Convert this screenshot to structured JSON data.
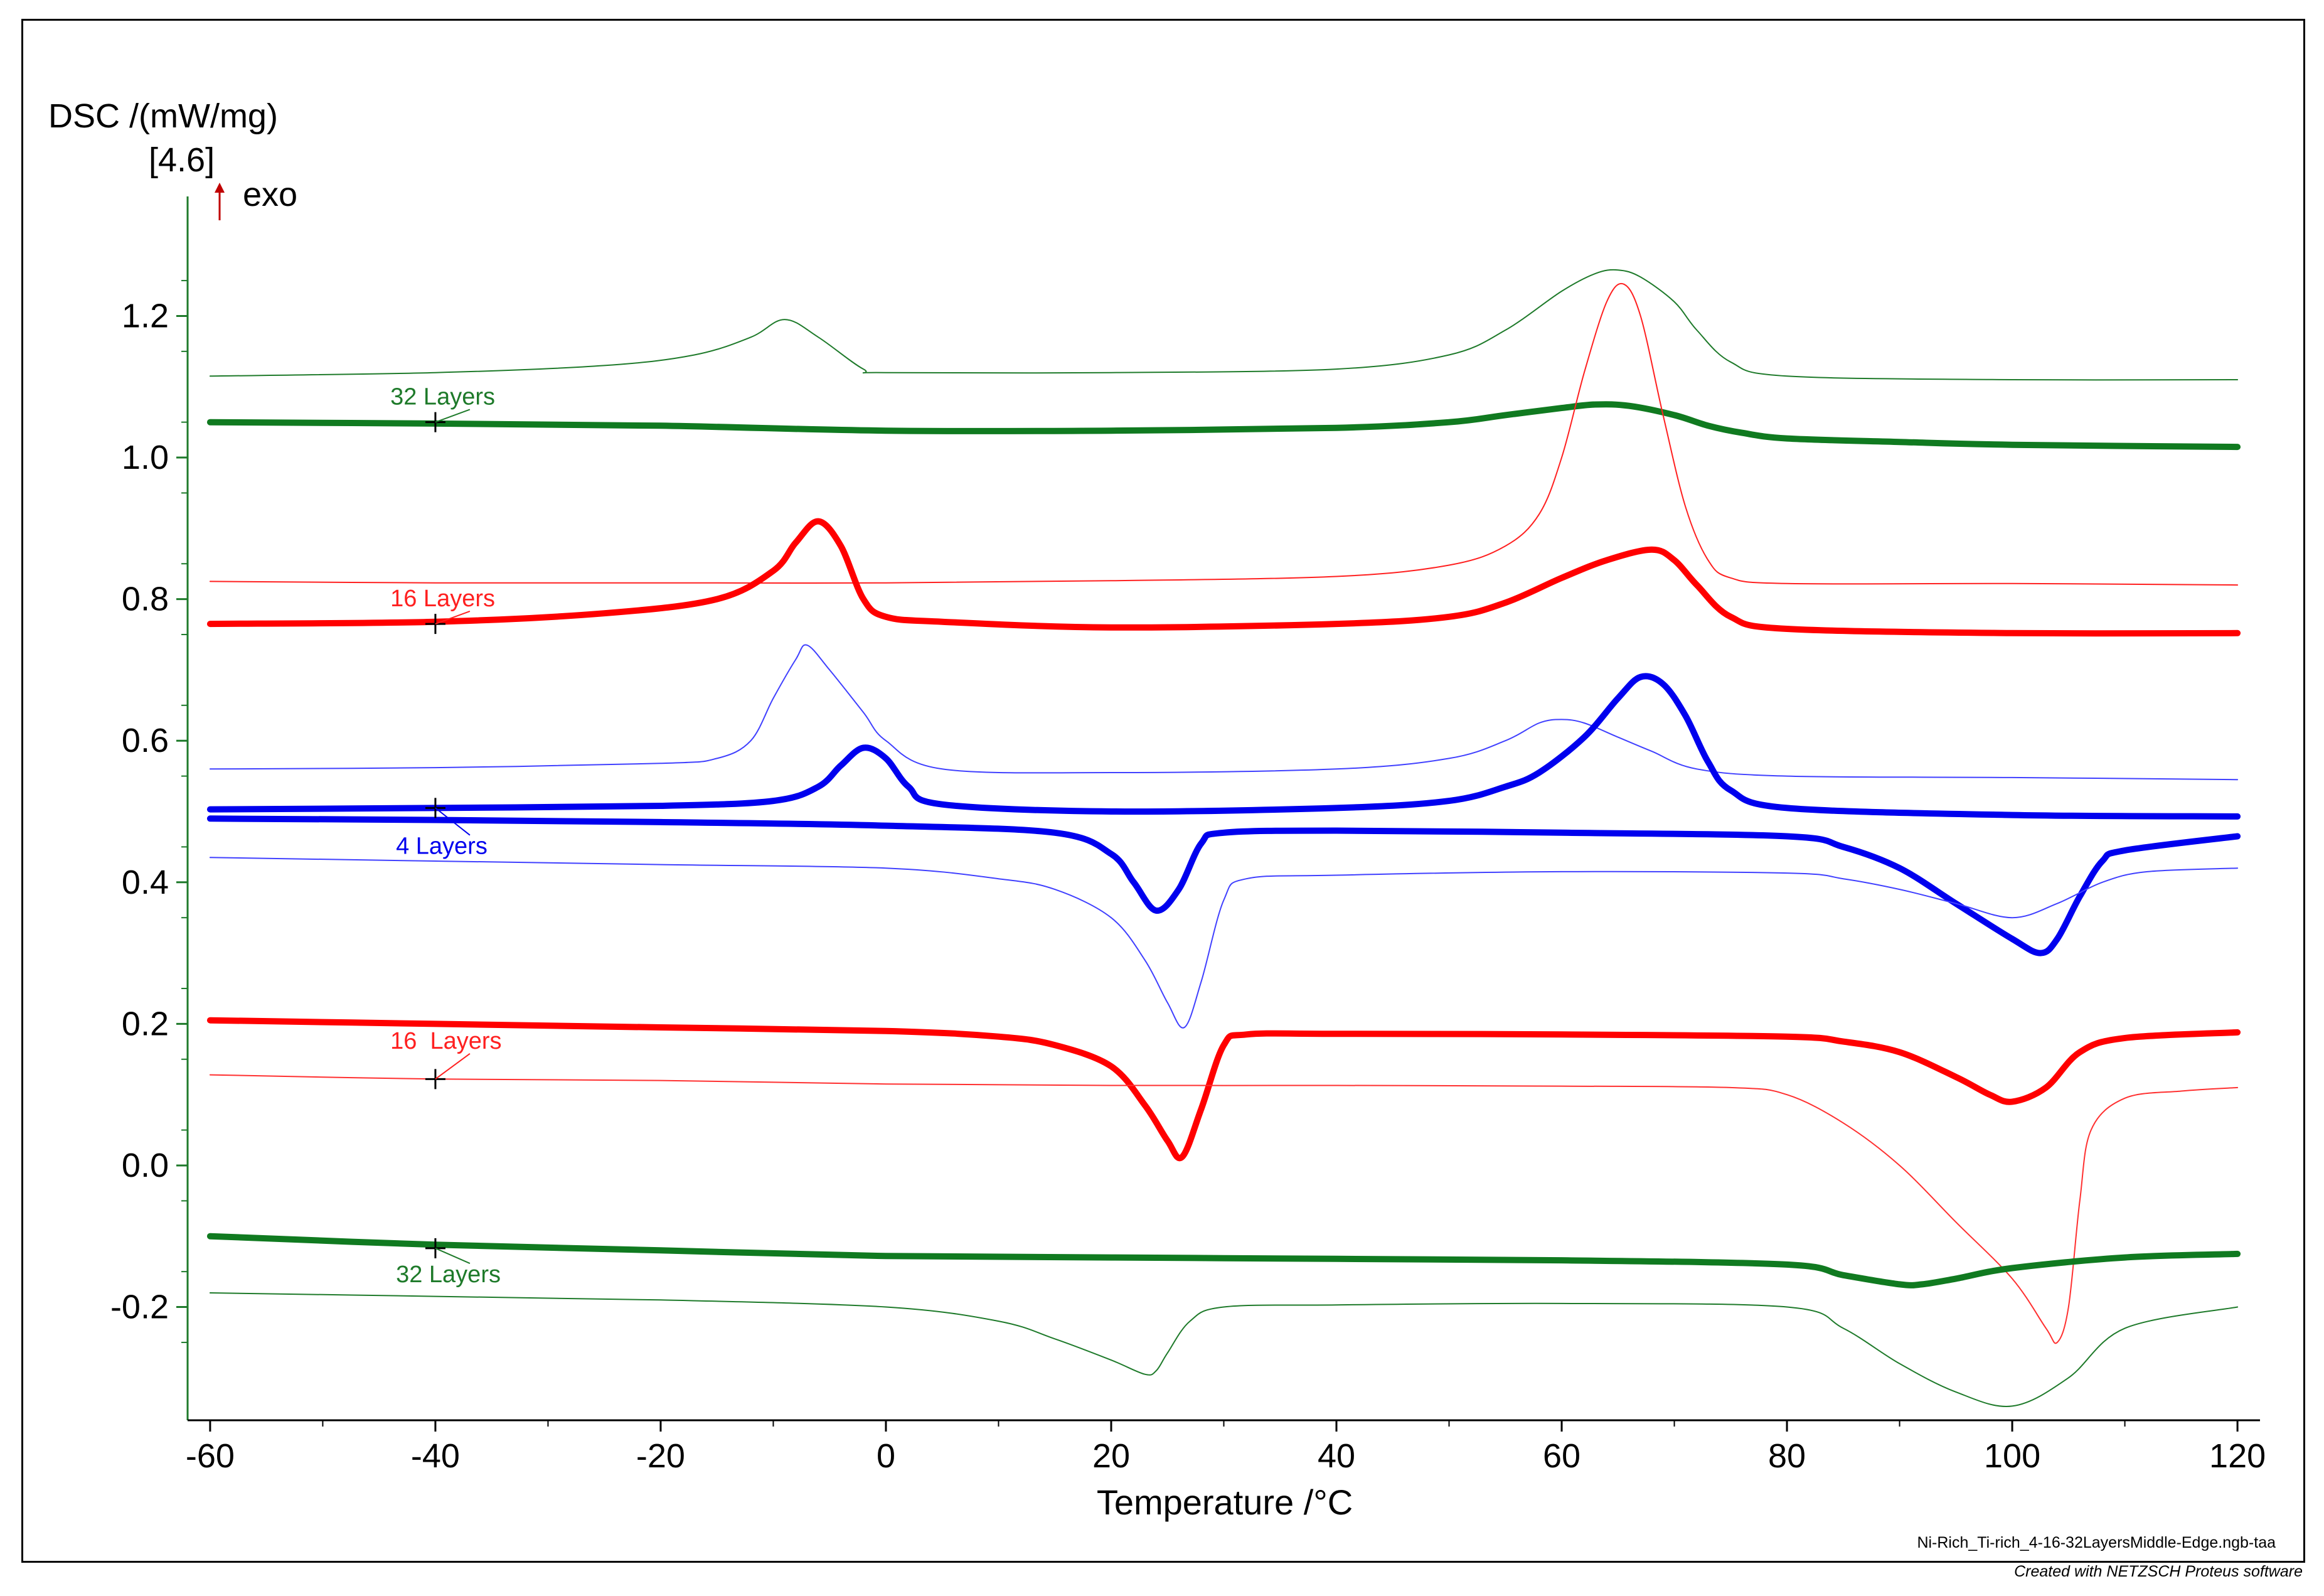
{
  "chart_data": {
    "type": "line",
    "title": "",
    "ylabel": "DSC /(mW/mg)",
    "ylabel_sub": "[4.6]",
    "exo_label": "exo",
    "xlabel": "Temperature /°C",
    "xlim": [
      -62,
      122
    ],
    "ylim": [
      -0.36,
      1.36
    ],
    "x_ticks": [
      -60,
      -40,
      -20,
      0,
      20,
      40,
      60,
      80,
      100,
      120
    ],
    "y_ticks": [
      -0.2,
      0.0,
      0.2,
      0.4,
      0.6,
      0.8,
      1.0,
      1.2
    ],
    "x_tick_labels": [
      "-60",
      "-40",
      "-20",
      "0",
      "20",
      "40",
      "60",
      "80",
      "100",
      "120"
    ],
    "y_tick_labels": [
      "-0.2",
      "0.0",
      "0.2",
      "0.4",
      "0.6",
      "0.8",
      "1.0",
      "1.2"
    ],
    "filename": "Ni-Rich_Ti-rich_4-16-32LayersMiddle-Edge.ngb-taa",
    "series": [
      {
        "name": "32 Layers thin cooling",
        "color": "#1e7a2a",
        "width": 2,
        "x": [
          -60,
          -40,
          -25,
          -17,
          -12,
          -9,
          -6,
          -2,
          0,
          20,
          40,
          50,
          55,
          60,
          63,
          65,
          67,
          70,
          72,
          75,
          80,
          100,
          120
        ],
        "y": [
          1.115,
          1.12,
          1.13,
          1.145,
          1.17,
          1.195,
          1.17,
          1.125,
          1.12,
          1.12,
          1.125,
          1.145,
          1.18,
          1.235,
          1.26,
          1.265,
          1.255,
          1.22,
          1.18,
          1.135,
          1.115,
          1.11,
          1.11
        ]
      },
      {
        "name": "32 Layers thick cooling",
        "color": "#107a20",
        "width": 10,
        "x": [
          -60,
          -40,
          -20,
          0,
          20,
          40,
          50,
          55,
          60,
          63,
          66,
          70,
          73,
          76,
          80,
          90,
          100,
          120
        ],
        "y": [
          1.05,
          1.048,
          1.045,
          1.038,
          1.038,
          1.042,
          1.05,
          1.06,
          1.07,
          1.075,
          1.073,
          1.06,
          1.045,
          1.035,
          1.027,
          1.022,
          1.018,
          1.015
        ]
      },
      {
        "name": "16 Layers thin cooling",
        "color": "#ff2020",
        "width": 2,
        "x": [
          -60,
          -40,
          -20,
          0,
          20,
          40,
          50,
          55,
          58,
          60,
          62,
          64,
          65.5,
          67,
          69,
          71,
          73,
          75,
          80,
          100,
          120
        ],
        "y": [
          0.825,
          0.823,
          0.823,
          0.823,
          0.826,
          0.832,
          0.848,
          0.875,
          0.92,
          1.0,
          1.12,
          1.22,
          1.245,
          1.2,
          1.06,
          0.93,
          0.855,
          0.83,
          0.822,
          0.822,
          0.82
        ]
      },
      {
        "name": "16 Layers thick cooling",
        "color": "#ff0000",
        "width": 10,
        "x": [
          -60,
          -40,
          -25,
          -15,
          -10,
          -8,
          -6,
          -4,
          -2,
          0,
          5,
          20,
          40,
          50,
          55,
          60,
          64,
          68,
          70,
          72,
          75,
          80,
          100,
          120
        ],
        "y": [
          0.765,
          0.768,
          0.78,
          0.8,
          0.84,
          0.88,
          0.91,
          0.875,
          0.8,
          0.775,
          0.768,
          0.76,
          0.765,
          0.775,
          0.795,
          0.83,
          0.855,
          0.87,
          0.855,
          0.82,
          0.775,
          0.758,
          0.752,
          0.752
        ]
      },
      {
        "name": "4 Layers thin cooling",
        "color": "#4040ff",
        "width": 2,
        "x": [
          -60,
          -40,
          -20,
          -15,
          -12,
          -10,
          -8,
          -7,
          -5,
          -2,
          0,
          5,
          20,
          40,
          50,
          55,
          58,
          60,
          62,
          65,
          68,
          72,
          80,
          100,
          120
        ],
        "y": [
          0.56,
          0.562,
          0.568,
          0.575,
          0.6,
          0.66,
          0.715,
          0.735,
          0.7,
          0.64,
          0.6,
          0.56,
          0.555,
          0.56,
          0.575,
          0.6,
          0.625,
          0.63,
          0.625,
          0.605,
          0.585,
          0.56,
          0.55,
          0.548,
          0.545
        ]
      },
      {
        "name": "4 Layers thick cooling",
        "color": "#0000ee",
        "width": 10,
        "x": [
          -60,
          -40,
          -20,
          -10,
          -6,
          -4,
          -2,
          0,
          2,
          5,
          20,
          40,
          50,
          55,
          58,
          62,
          65,
          67,
          69,
          71,
          73,
          75,
          80,
          100,
          120
        ],
        "y": [
          0.503,
          0.505,
          0.508,
          0.515,
          0.535,
          0.565,
          0.59,
          0.575,
          0.535,
          0.51,
          0.5,
          0.505,
          0.515,
          0.535,
          0.555,
          0.605,
          0.66,
          0.69,
          0.68,
          0.635,
          0.57,
          0.53,
          0.505,
          0.495,
          0.493
        ]
      },
      {
        "name": "4 Layers thick heating",
        "color": "#0000ee",
        "width": 10,
        "x": [
          -60,
          -40,
          -20,
          0,
          15,
          20,
          22,
          24,
          26,
          28,
          30,
          40,
          60,
          80,
          85,
          90,
          95,
          100,
          102.5,
          104,
          106,
          108,
          110,
          120
        ],
        "y": [
          0.49,
          0.488,
          0.485,
          0.48,
          0.47,
          0.44,
          0.4,
          0.36,
          0.39,
          0.455,
          0.47,
          0.473,
          0.47,
          0.465,
          0.45,
          0.42,
          0.37,
          0.32,
          0.3,
          0.32,
          0.38,
          0.43,
          0.445,
          0.465
        ]
      },
      {
        "name": "4 Layers thin heating",
        "color": "#4040ff",
        "width": 2,
        "x": [
          -60,
          -40,
          -20,
          0,
          10,
          15,
          20,
          23,
          25,
          26.5,
          28,
          30,
          32,
          40,
          60,
          80,
          85,
          90,
          95,
          100,
          104,
          108,
          112,
          120
        ],
        "y": [
          0.435,
          0.43,
          0.425,
          0.42,
          0.405,
          0.39,
          0.35,
          0.29,
          0.23,
          0.195,
          0.26,
          0.375,
          0.405,
          0.41,
          0.415,
          0.413,
          0.405,
          0.39,
          0.37,
          0.35,
          0.37,
          0.4,
          0.415,
          0.42
        ]
      },
      {
        "name": "16 Layers thick heating",
        "color": "#ff0000",
        "width": 10,
        "x": [
          -60,
          -40,
          -20,
          0,
          10,
          15,
          20,
          23,
          25,
          26.3,
          28,
          30,
          32,
          40,
          60,
          80,
          85,
          90,
          95,
          98,
          100,
          103,
          106,
          110,
          120
        ],
        "y": [
          0.205,
          0.2,
          0.195,
          0.19,
          0.182,
          0.17,
          0.14,
          0.085,
          0.035,
          0.012,
          0.08,
          0.17,
          0.185,
          0.186,
          0.185,
          0.182,
          0.175,
          0.16,
          0.125,
          0.1,
          0.09,
          0.11,
          0.16,
          0.18,
          0.188
        ]
      },
      {
        "name": "16 Layers thin heating",
        "color": "#ff3030",
        "width": 2,
        "x": [
          -60,
          -40,
          -20,
          0,
          20,
          40,
          60,
          75,
          80,
          85,
          90,
          95,
          100,
          103,
          104,
          105,
          106,
          107,
          110,
          115,
          120
        ],
        "y": [
          0.128,
          0.122,
          0.12,
          0.115,
          0.113,
          0.113,
          0.112,
          0.11,
          0.1,
          0.06,
          0.0,
          -0.08,
          -0.16,
          -0.23,
          -0.25,
          -0.2,
          -0.05,
          0.05,
          0.095,
          0.105,
          0.11
        ]
      },
      {
        "name": "32 Layers thick heating",
        "color": "#107a20",
        "width": 10,
        "x": [
          -60,
          -40,
          -20,
          0,
          20,
          40,
          60,
          80,
          85,
          90,
          92,
          95,
          100,
          110,
          120
        ],
        "y": [
          -0.1,
          -0.112,
          -0.12,
          -0.128,
          -0.13,
          -0.132,
          -0.134,
          -0.14,
          -0.155,
          -0.168,
          -0.168,
          -0.16,
          -0.145,
          -0.13,
          -0.125
        ]
      },
      {
        "name": "32 Layers thin heating",
        "color": "#1e7a2a",
        "width": 2,
        "x": [
          -60,
          -40,
          -20,
          0,
          10,
          15,
          20,
          23,
          24,
          25,
          27,
          30,
          40,
          60,
          80,
          85,
          90,
          95,
          100,
          105,
          110,
          120
        ],
        "y": [
          -0.18,
          -0.185,
          -0.19,
          -0.2,
          -0.22,
          -0.245,
          -0.275,
          -0.295,
          -0.29,
          -0.265,
          -0.22,
          -0.2,
          -0.197,
          -0.195,
          -0.2,
          -0.23,
          -0.28,
          -0.32,
          -0.34,
          -0.3,
          -0.23,
          -0.2
        ]
      }
    ],
    "labels": [
      {
        "text": "32 Layers",
        "color": "#1e7a2a",
        "x": -44,
        "y": 1.075
      },
      {
        "text": "16 Layers",
        "color": "#ff2020",
        "x": -44,
        "y": 0.79
      },
      {
        "text": "4 Layers",
        "color": "#0000ee",
        "x": -43.5,
        "y": 0.44
      },
      {
        "text": "16  Layers",
        "color": "#ff2020",
        "x": -44,
        "y": 0.165
      },
      {
        "text": "32 Layers",
        "color": "#1e7a2a",
        "x": -43.5,
        "y": -0.165
      }
    ],
    "markers": [
      {
        "x": -40,
        "y": 1.05
      },
      {
        "x": -40,
        "y": 0.765
      },
      {
        "x": -40,
        "y": 0.505
      },
      {
        "x": -40,
        "y": 0.122
      },
      {
        "x": -40,
        "y": -0.117
      }
    ]
  },
  "footer": {
    "credit": "Created with NETZSCH Proteus software"
  }
}
